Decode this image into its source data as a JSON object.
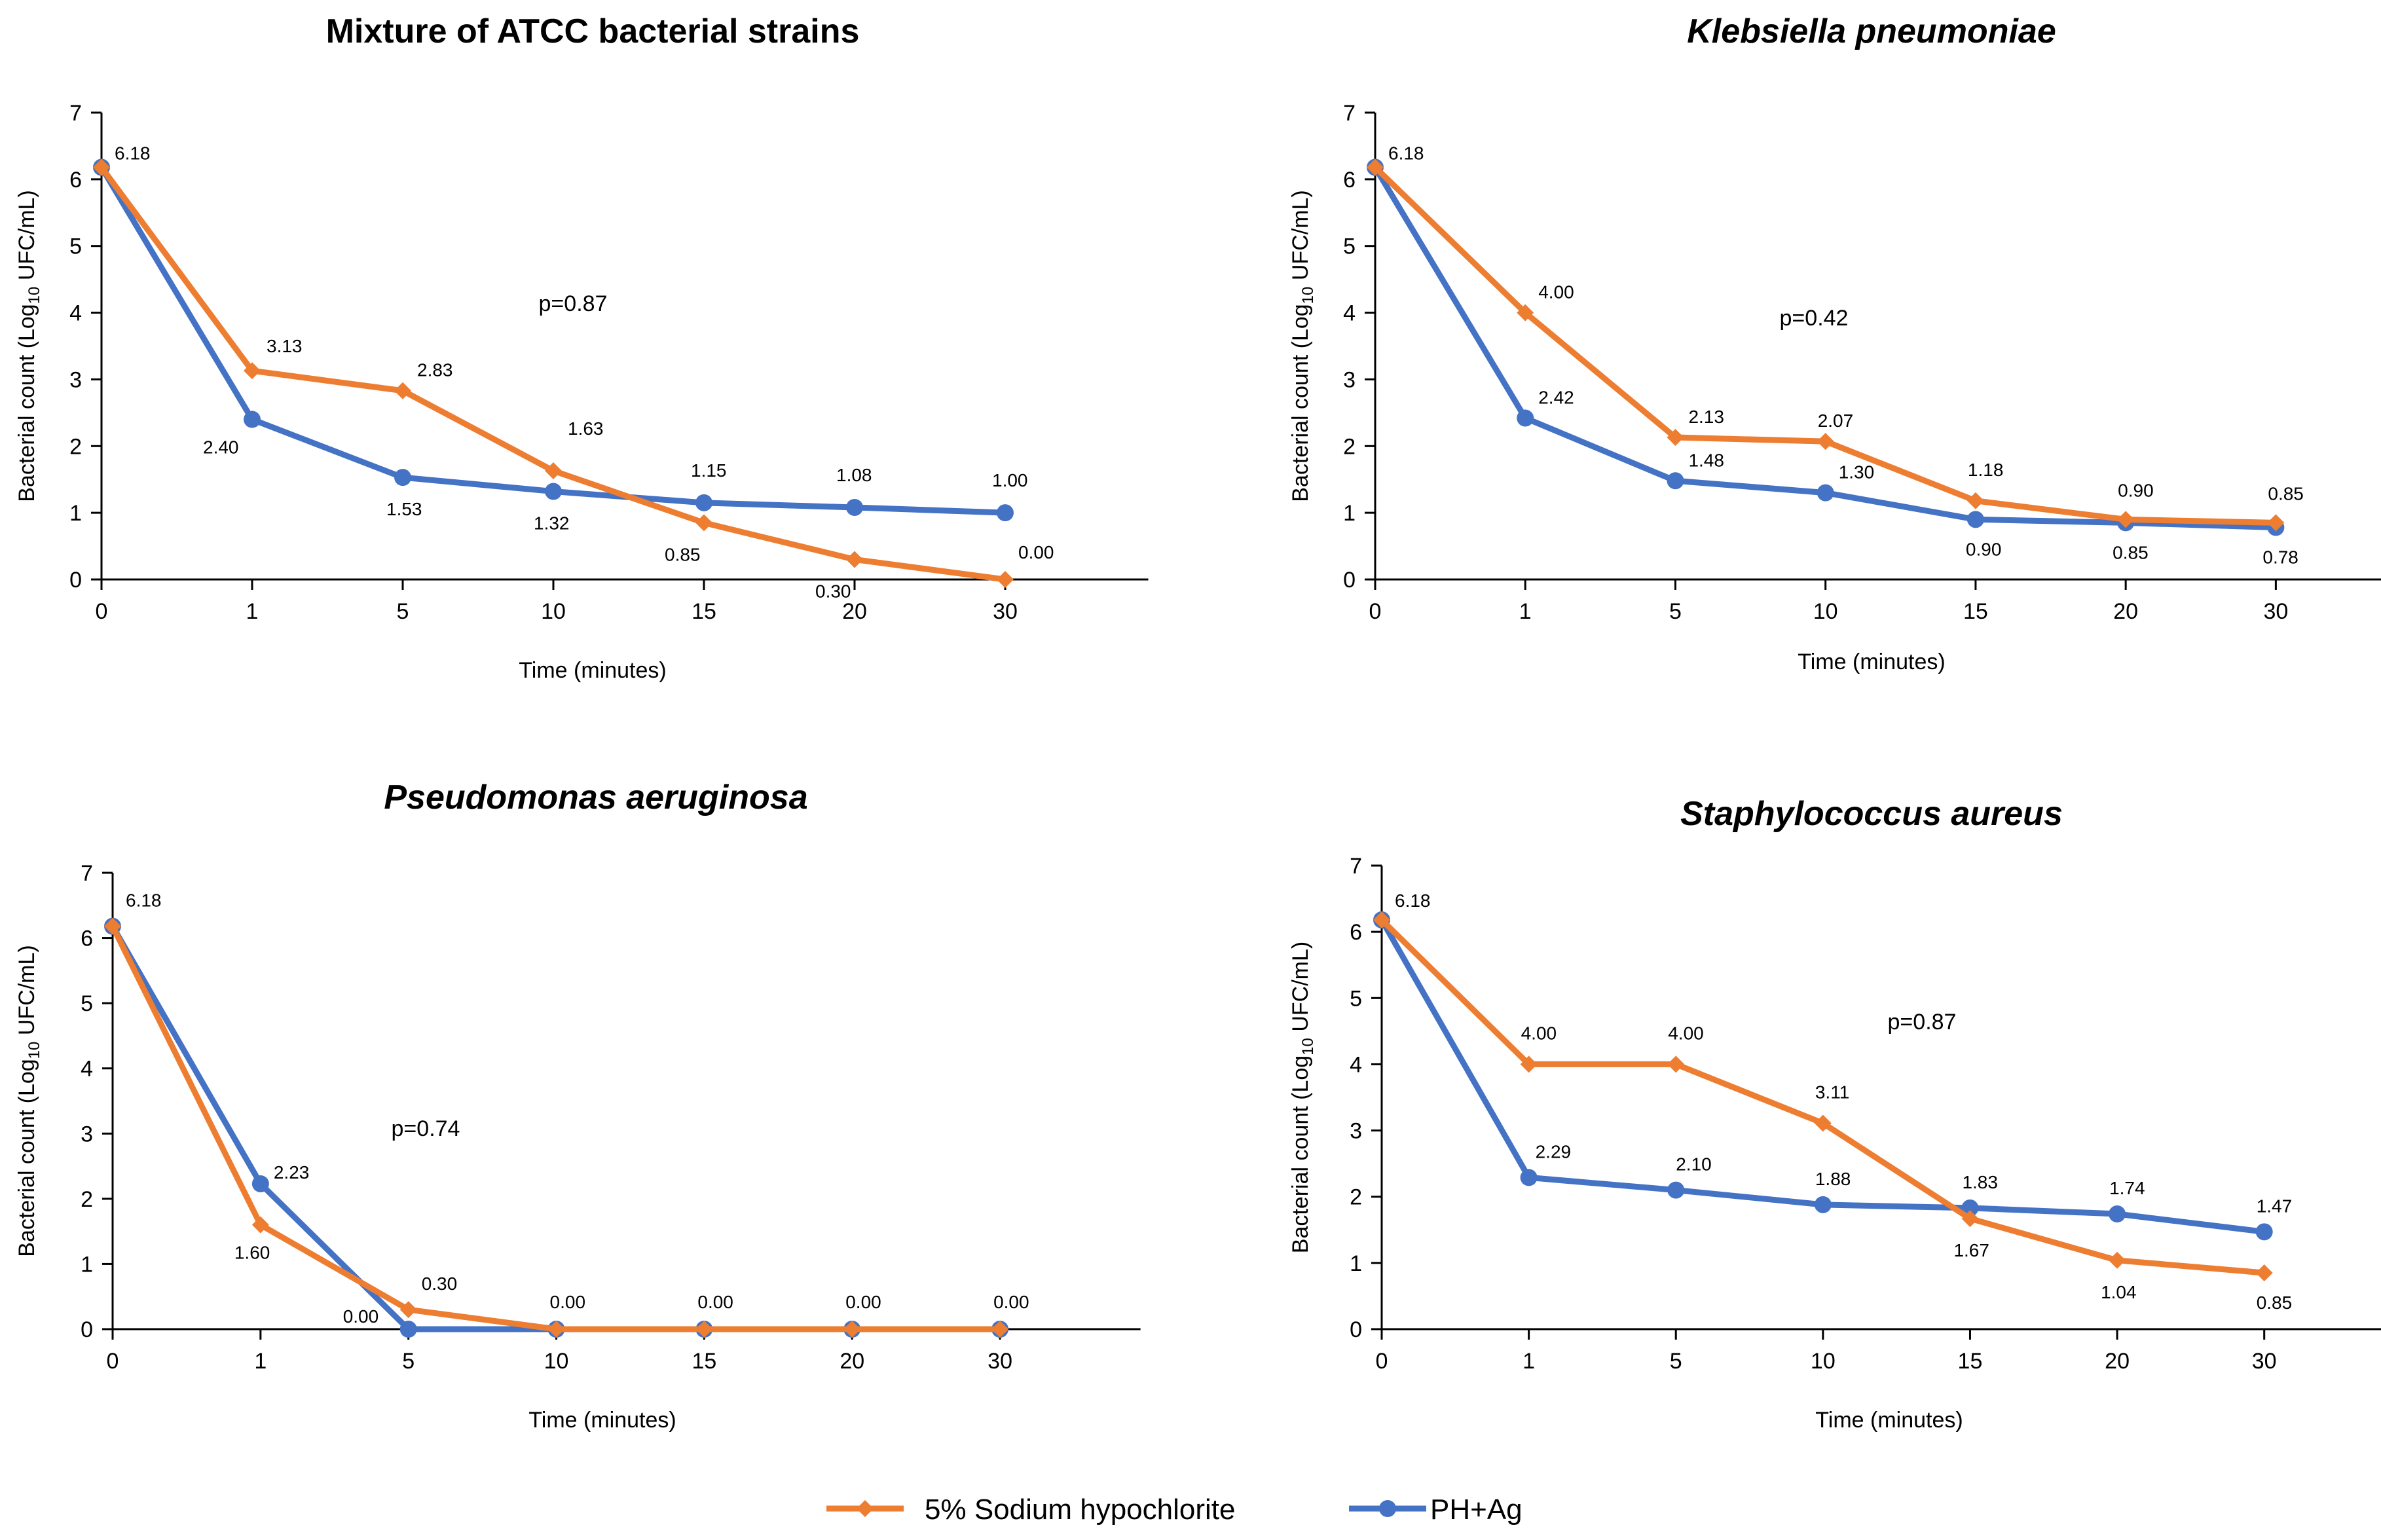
{
  "colors": {
    "naocl": "#ED7D31",
    "phag": "#4472C4",
    "axis": "#000000"
  },
  "legend": {
    "naocl_label": "5% Sodium hypochlorite",
    "phag_label": "PH+Ag"
  },
  "chart_data": [
    {
      "type": "line",
      "title": "Mixture of ATCC bacterial strains",
      "title_italic": false,
      "categories": [
        "0",
        "1",
        "5",
        "10",
        "15",
        "20",
        "30"
      ],
      "xlabel": "Time (minutes)",
      "ylabel_prefix": "Bacterial count (Log",
      "ylabel_sub": "10",
      "ylabel_suffix": " UFC/mL)",
      "ylim": [
        0,
        7
      ],
      "yticks": [
        "0",
        "1",
        "2",
        "3",
        "4",
        "5",
        "6",
        "7"
      ],
      "p_value": "p=0.87",
      "series": [
        {
          "name": "5% Sodium hypochlorite",
          "values": [
            6.18,
            3.13,
            2.83,
            1.63,
            0.85,
            0.3,
            0.0
          ],
          "labels": [
            "6.18",
            "3.13",
            "2.83",
            "1.63",
            "0.85",
            "0.30",
            "0.00"
          ]
        },
        {
          "name": "PH+Ag",
          "values": [
            6.18,
            2.4,
            1.53,
            1.32,
            1.15,
            1.08,
            1.0
          ],
          "labels": [
            "",
            "2.40",
            "1.53",
            "1.32",
            "1.15",
            "1.08",
            "1.00"
          ]
        }
      ]
    },
    {
      "type": "line",
      "title": "Klebsiella pneumoniae",
      "title_italic": true,
      "categories": [
        "0",
        "1",
        "5",
        "10",
        "15",
        "20",
        "30"
      ],
      "xlabel": "Time (minutes)",
      "ylabel_prefix": "Bacterial count (Log",
      "ylabel_sub": "10",
      "ylabel_suffix": " UFC/mL)",
      "ylim": [
        0,
        7
      ],
      "yticks": [
        "0",
        "1",
        "2",
        "3",
        "4",
        "5",
        "6",
        "7"
      ],
      "p_value": "p=0.42",
      "series": [
        {
          "name": "5% Sodium hypochlorite",
          "values": [
            6.18,
            4.0,
            2.13,
            2.07,
            1.18,
            0.9,
            0.85
          ],
          "labels": [
            "6.18",
            "4.00",
            "2.13",
            "2.07",
            "1.18",
            "0.90",
            "0.85"
          ]
        },
        {
          "name": "PH+Ag",
          "values": [
            6.18,
            2.42,
            1.48,
            1.3,
            0.9,
            0.85,
            0.78
          ],
          "labels": [
            "",
            "2.42",
            "1.48",
            "1.30",
            "0.90",
            "0.85",
            "0.78"
          ]
        }
      ]
    },
    {
      "type": "line",
      "title": "Pseudomonas aeruginosa",
      "title_italic": true,
      "categories": [
        "0",
        "1",
        "5",
        "10",
        "15",
        "20",
        "30"
      ],
      "xlabel": "Time (minutes)",
      "ylabel_prefix": "Bacterial count (Log",
      "ylabel_sub": "10",
      "ylabel_suffix": " UFC/mL)",
      "ylim": [
        0,
        7
      ],
      "yticks": [
        "0",
        "1",
        "2",
        "3",
        "4",
        "5",
        "6",
        "7"
      ],
      "p_value": "p=0.74",
      "series": [
        {
          "name": "5% Sodium hypochlorite",
          "values": [
            6.18,
            1.6,
            0.3,
            0.0,
            0.0,
            0.0,
            0.0
          ],
          "labels": [
            "6.18",
            "1.60",
            "0.30",
            "0.00",
            "0.00",
            "0.00",
            "0.00"
          ]
        },
        {
          "name": "PH+Ag",
          "values": [
            6.18,
            2.23,
            0.0,
            0.0,
            0.0,
            0.0,
            0.0
          ],
          "labels": [
            "",
            "2.23",
            "0.00",
            "",
            "",
            "",
            ""
          ]
        }
      ]
    },
    {
      "type": "line",
      "title": "Staphylococcus aureus",
      "title_italic": true,
      "categories": [
        "0",
        "1",
        "5",
        "10",
        "15",
        "20",
        "30"
      ],
      "xlabel": "Time (minutes)",
      "ylabel_prefix": "Bacterial count (Log",
      "ylabel_sub": "10",
      "ylabel_suffix": " UFC/mL)",
      "ylim": [
        0,
        7
      ],
      "yticks": [
        "0",
        "1",
        "2",
        "3",
        "4",
        "5",
        "6",
        "7"
      ],
      "p_value": "p=0.87",
      "series": [
        {
          "name": "5% Sodium hypochlorite",
          "values": [
            6.18,
            4.0,
            4.0,
            3.11,
            1.67,
            1.04,
            0.85
          ],
          "labels": [
            "6.18",
            "4.00",
            "4.00",
            "3.11",
            "1.67",
            "1.04",
            "0.85"
          ]
        },
        {
          "name": "PH+Ag",
          "values": [
            6.18,
            2.29,
            2.1,
            1.88,
            1.83,
            1.74,
            1.47
          ],
          "labels": [
            "",
            "2.29",
            "2.10",
            "1.88",
            "1.83",
            "1.74",
            "1.47"
          ]
        }
      ]
    }
  ]
}
